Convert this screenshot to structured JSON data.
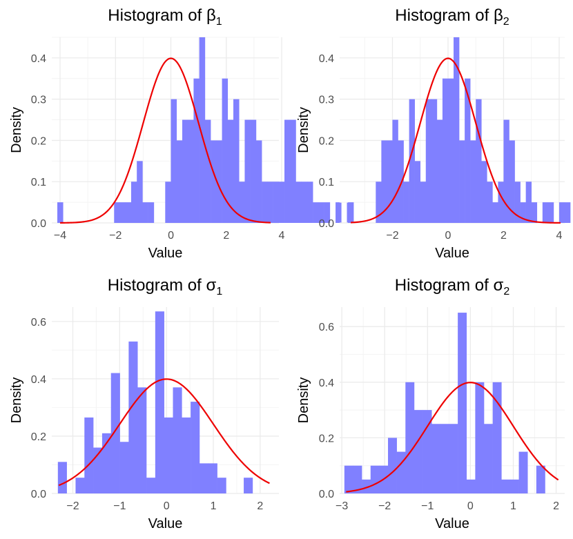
{
  "colors": {
    "bar": "#8080ff",
    "curve": "#ee0000",
    "grid_major": "#ebebeb",
    "grid_minor": "#f4f4f4",
    "tick_text": "#4d4d4d"
  },
  "chart_data": [
    {
      "type": "bar",
      "title": "Histogram of β",
      "title_subscript": "1",
      "xlabel": "Value",
      "ylabel": "Density",
      "grid": true,
      "xlim": [
        -4.3,
        3.9
      ],
      "ylim": [
        0,
        0.45
      ],
      "xticks": [
        -4,
        -2,
        0,
        2,
        4
      ],
      "yticks": [
        0.0,
        0.1,
        0.2,
        0.3,
        0.4
      ],
      "bin_start": -4.1,
      "bin_width": 0.205,
      "values": [
        0.05,
        0,
        0,
        0,
        0,
        0,
        0,
        0,
        0,
        0,
        0.05,
        0.05,
        0.05,
        0.1,
        0.15,
        0.05,
        0.05,
        0,
        0,
        0.1,
        0.3,
        0.2,
        0.25,
        0.25,
        0.35,
        0.45,
        0.25,
        0.2,
        0.2,
        0.35,
        0.25,
        0.3,
        0.1,
        0.25,
        0.25,
        0.2,
        0.1,
        0.1,
        0.1,
        0.1,
        0.25,
        0.25,
        0.1,
        0.1,
        0.1,
        0.05,
        0.05,
        0.05,
        0,
        0.05,
        0,
        0.05
      ],
      "curve": {
        "type": "normal-density",
        "mean": 0,
        "sd": 1,
        "range": [
          -4,
          3.6
        ]
      }
    },
    {
      "type": "bar",
      "title": "Histogram of β",
      "title_subscript": "2",
      "xlabel": "Value",
      "ylabel": "Density",
      "grid": true,
      "xlim": [
        -3.9,
        4.2
      ],
      "ylim": [
        0,
        0.45
      ],
      "xticks": [
        -2,
        0,
        2,
        4
      ],
      "yticks": [
        0.0,
        0.1,
        0.2,
        0.3,
        0.4
      ],
      "bin_start": -3.6,
      "bin_width": 0.2,
      "values": [
        0.05,
        0,
        0,
        0,
        0,
        0.1,
        0.2,
        0.2,
        0.25,
        0.2,
        0.1,
        0.3,
        0.15,
        0.1,
        0.3,
        0.3,
        0.25,
        0.35,
        0.35,
        0.45,
        0.2,
        0.35,
        0.2,
        0.3,
        0.15,
        0.1,
        0.05,
        0.1,
        0.25,
        0.2,
        0.1,
        0.05,
        0.1,
        0.05,
        0,
        0.05,
        0.05,
        0,
        0.05,
        0.05,
        0,
        0,
        0,
        0.05
      ],
      "curve": {
        "type": "normal-density",
        "mean": 0,
        "sd": 1,
        "range": [
          -3.5,
          4.05
        ]
      }
    },
    {
      "type": "bar",
      "title": "Histogram of σ",
      "title_subscript": "1",
      "xlabel": "Value",
      "ylabel": "Density",
      "grid": true,
      "xlim": [
        -2.45,
        2.4
      ],
      "ylim": [
        0,
        0.65
      ],
      "xticks": [
        -2,
        -1,
        0,
        1,
        2
      ],
      "yticks": [
        0.0,
        0.2,
        0.4,
        0.6
      ],
      "bin_start": -2.32,
      "bin_width": 0.189,
      "values": [
        0.11,
        0,
        0.055,
        0.265,
        0.16,
        0.21,
        0.42,
        0.18,
        0.53,
        0.37,
        0.055,
        0.635,
        0.265,
        0.37,
        0.265,
        0.32,
        0.105,
        0.105,
        0.055,
        0,
        0,
        0.055
      ],
      "curve": {
        "type": "normal-density",
        "mean": 0,
        "sd": 1,
        "range": [
          -2.3,
          2.2
        ]
      }
    },
    {
      "type": "bar",
      "title": "Histogram of σ",
      "title_subscript": "2",
      "xlabel": "Value",
      "ylabel": "Density",
      "grid": true,
      "xlim": [
        -3.05,
        2.2
      ],
      "ylim": [
        0,
        0.67
      ],
      "xticks": [
        -3,
        -2,
        -1,
        0,
        1,
        2
      ],
      "yticks": [
        0.0,
        0.2,
        0.4,
        0.6
      ],
      "bin_start": -2.94,
      "bin_width": 0.2035,
      "values": [
        0.1,
        0.1,
        0.05,
        0.1,
        0.1,
        0.2,
        0.15,
        0.4,
        0.3,
        0.3,
        0.25,
        0.25,
        0.25,
        0.65,
        0.05,
        0.4,
        0.25,
        0.4,
        0.05,
        0.05,
        0.15,
        0,
        0.1
      ],
      "curve": {
        "type": "normal-density",
        "mean": 0,
        "sd": 1,
        "range": [
          -2.9,
          2.05
        ]
      }
    }
  ]
}
